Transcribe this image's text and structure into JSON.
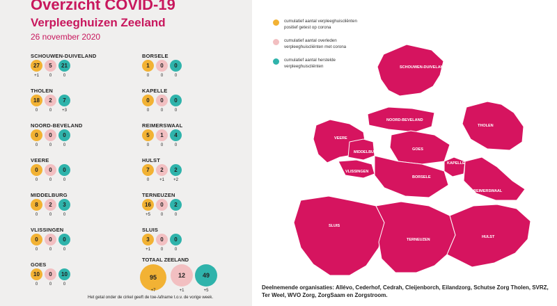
{
  "header": {
    "title": "Overzicht COVID-19",
    "subtitle": "Verpleeghuizen Zeeland",
    "date": "26 november 2020"
  },
  "legend": [
    {
      "text": "cumulatief aantal verpleeghuiscliënten\npositief getest op corona",
      "color": "#f2b234"
    },
    {
      "text": "cumulatief aantal overleden\nverpleeghuiscliënten met corona",
      "color": "#f2bfc1"
    },
    {
      "text": "cumulatief aantal herstelde\nverpleeghuiscliënten",
      "color": "#2fb3ab"
    }
  ],
  "regions": [
    {
      "name": "SCHOUWEN-DUIVELAND",
      "values": [
        "27",
        "5",
        "21"
      ],
      "deltas": [
        "+1",
        "0",
        "0"
      ]
    },
    {
      "name": "THOLEN",
      "values": [
        "18",
        "2",
        "7"
      ],
      "deltas": [
        "0",
        "0",
        "+3"
      ]
    },
    {
      "name": "NOORD-BEVELAND",
      "values": [
        "0",
        "0",
        "0"
      ],
      "deltas": [
        "0",
        "0",
        "0"
      ]
    },
    {
      "name": "VEERE",
      "values": [
        "0",
        "0",
        "0"
      ],
      "deltas": [
        "0",
        "0",
        "0"
      ]
    },
    {
      "name": "MIDDELBURG",
      "values": [
        "8",
        "2",
        "3"
      ],
      "deltas": [
        "0",
        "0",
        "0"
      ]
    },
    {
      "name": "VLISSINGEN",
      "values": [
        "0",
        "0",
        "0"
      ],
      "deltas": [
        "0",
        "0",
        "0"
      ]
    },
    {
      "name": "GOES",
      "values": [
        "10",
        "0",
        "10"
      ],
      "deltas": [
        "0",
        "0",
        "0"
      ]
    },
    {
      "name": "BORSELE",
      "values": [
        "1",
        "0",
        "0"
      ],
      "deltas": [
        "0",
        "0",
        "0"
      ]
    },
    {
      "name": "KAPELLE",
      "values": [
        "0",
        "0",
        "0"
      ],
      "deltas": [
        "0",
        "0",
        "0"
      ]
    },
    {
      "name": "REIMERSWAAL",
      "values": [
        "5",
        "1",
        "4"
      ],
      "deltas": [
        "0",
        "0",
        "0"
      ]
    },
    {
      "name": "HULST",
      "values": [
        "7",
        "2",
        "2"
      ],
      "deltas": [
        "0",
        "+1",
        "+2"
      ]
    },
    {
      "name": "TERNEUZEN",
      "values": [
        "16",
        "0",
        "2"
      ],
      "deltas": [
        "+5",
        "0",
        "0"
      ]
    },
    {
      "name": "SLUIS",
      "values": [
        "3",
        "0",
        "0"
      ],
      "deltas": [
        "+1",
        "0",
        "0"
      ]
    }
  ],
  "total": {
    "name": "TOTAAL ZEELAND",
    "values": [
      "95",
      "12",
      "49"
    ],
    "deltas": [
      "+7",
      "+1",
      "+5"
    ]
  },
  "footnote": "Het getal onder de cirkel geeft de toe-/afname t.o.v. de vorige week.",
  "participants": "Deelnemende organisaties: Allévo, Cederhof, Cedrah, Cleijenborch, Eilandzorg, Schutse Zorg Tholen, SVRZ, Ter Weel, WVO Zorg, ZorgSaam en Zorgstroom.",
  "map": {
    "fill": "#d6145f",
    "labels": [
      "SCHOUWEN-DUIVELAND",
      "THOLEN",
      "NOORD-BEVELAND",
      "VEERE",
      "MIDDELBURG",
      "GOES",
      "KAPELLE",
      "VLISSINGEN",
      "BORSELE",
      "REIMERSWAAL",
      "SLUIS",
      "TERNEUZEN",
      "HULST"
    ]
  }
}
